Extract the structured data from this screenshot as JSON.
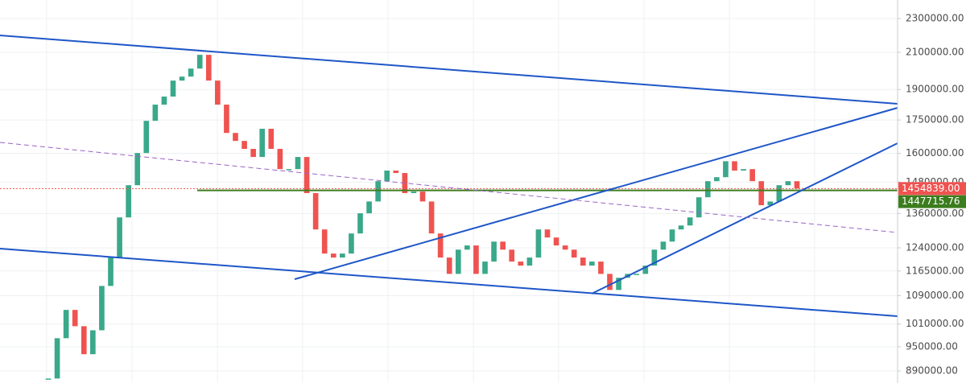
{
  "chart_data": {
    "type": "candlestick",
    "close": [
      872000,
      972000,
      1049000,
      1004000,
      931000,
      993000,
      1119000,
      1208000,
      1346000,
      1468000,
      1601000,
      1746000,
      1824000,
      1864000,
      1946000,
      1967000,
      2010000,
      2086000,
      1946000,
      1824000,
      1690000,
      1654000,
      1619000,
      1584000,
      1709000,
      1619000,
      1533000,
      1533000,
      1584000,
      1437000,
      1303000,
      1221000,
      1208000,
      1221000,
      1289000,
      1361000,
      1405000,
      1484000,
      1527000,
      1517000,
      1437000,
      1443000,
      1405000,
      1289000,
      1208000,
      1156000,
      1234000,
      1248000,
      1156000,
      1195000,
      1261000,
      1234000,
      1195000,
      1182000,
      1208000,
      1303000,
      1275000,
      1248000,
      1234000,
      1208000,
      1182000,
      1195000,
      1156000,
      1107000,
      1144000,
      1156000,
      1156000,
      1182000,
      1234000,
      1261000,
      1303000,
      1317000,
      1346000,
      1421000,
      1484000,
      1500000,
      1566000,
      1527000,
      1533000,
      1484000,
      1391000,
      1405000,
      1468000,
      1484000,
      1455000
    ],
    "up_color": "#3aa88a",
    "down_color": "#ef5350",
    "log_scale": true,
    "grid": true,
    "ylim": [
      861500,
      2418000
    ],
    "yticks": [
      {
        "value": 2300000,
        "label": "2300000.00"
      },
      {
        "value": 2100000,
        "label": "2100000.00"
      },
      {
        "value": 1900000,
        "label": "1900000.00"
      },
      {
        "value": 1750000,
        "label": "1750000.00"
      },
      {
        "value": 1600000,
        "label": "1600000.00"
      },
      {
        "value": 1480000,
        "label": "1480000.00"
      },
      {
        "value": 1360000,
        "label": "1360000.00"
      },
      {
        "value": 1240000,
        "label": "1240000.00"
      },
      {
        "value": 1165000,
        "label": "1165000.00"
      },
      {
        "value": 1090000,
        "label": "1090000.00"
      },
      {
        "value": 1010000,
        "label": "1010000.00"
      },
      {
        "value": 950000,
        "label": "950000.00"
      },
      {
        "value": 890000,
        "label": "890000.00"
      }
    ],
    "price_lines": [
      {
        "value": 1454839,
        "label": "1454839.00",
        "color": "#ef5350"
      },
      {
        "value": 1447715.76,
        "label": "1447715.76",
        "color": "#3c7d1e"
      }
    ]
  }
}
